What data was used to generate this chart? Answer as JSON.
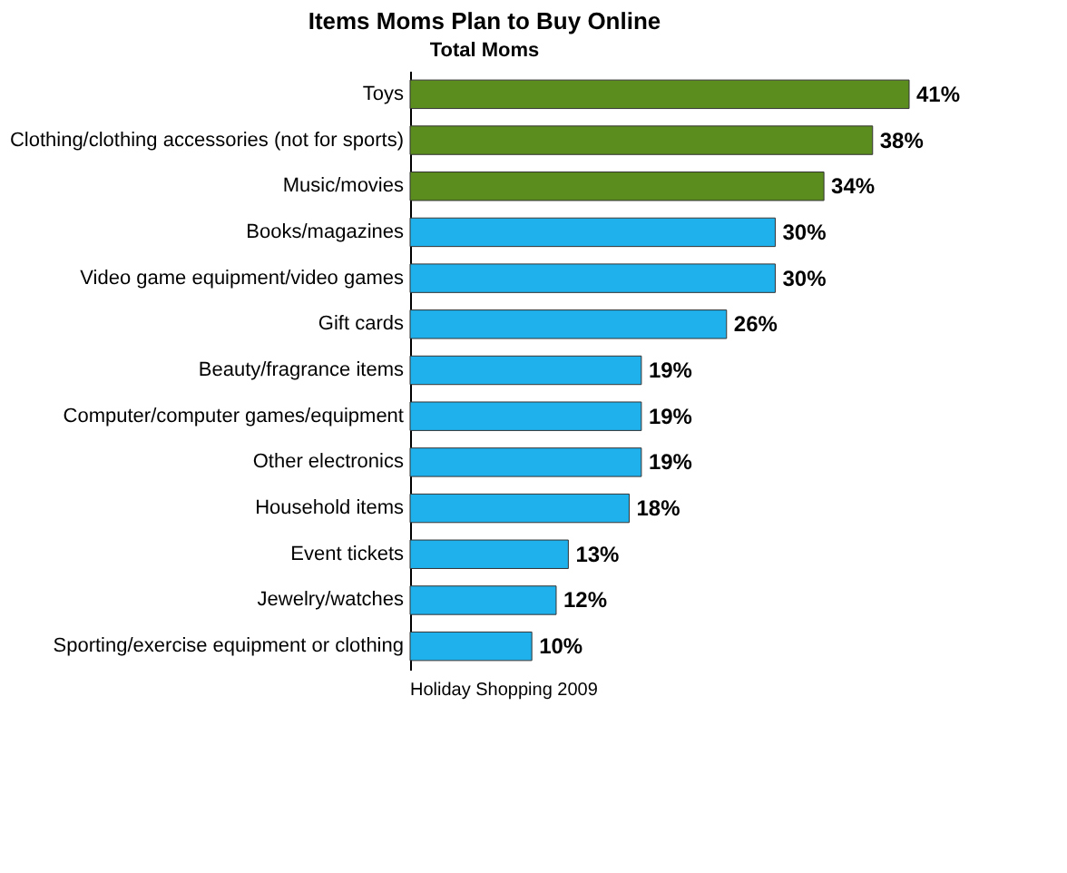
{
  "chart_data": {
    "type": "bar",
    "orientation": "horizontal",
    "title": "Items Moms Plan to Buy Online",
    "subtitle": "Total Moms",
    "categories": [
      "Toys",
      "Clothing/clothing accessories (not for sports)",
      "Music/movies",
      "Books/magazines",
      "Video game equipment/video games",
      "Gift cards",
      "Beauty/fragrance items",
      "Computer/computer games/equipment",
      "Other electronics",
      "Household items",
      "Event tickets",
      "Jewelry/watches",
      "Sporting/exercise equipment or clothing"
    ],
    "values": [
      41,
      38,
      34,
      30,
      30,
      26,
      19,
      19,
      19,
      18,
      13,
      12,
      10
    ],
    "value_labels": [
      "41%",
      "38%",
      "34%",
      "30%",
      "30%",
      "26%",
      "19%",
      "19%",
      "19%",
      "18%",
      "13%",
      "12%",
      "10%"
    ],
    "colors": [
      "#5b8c1e",
      "#5b8c1e",
      "#5b8c1e",
      "#1fb1ec",
      "#1fb1ec",
      "#1fb1ec",
      "#1fb1ec",
      "#1fb1ec",
      "#1fb1ec",
      "#1fb1ec",
      "#1fb1ec",
      "#1fb1ec",
      "#1fb1ec"
    ],
    "annotations": [
      "Holiday Shopping 2009"
    ]
  }
}
